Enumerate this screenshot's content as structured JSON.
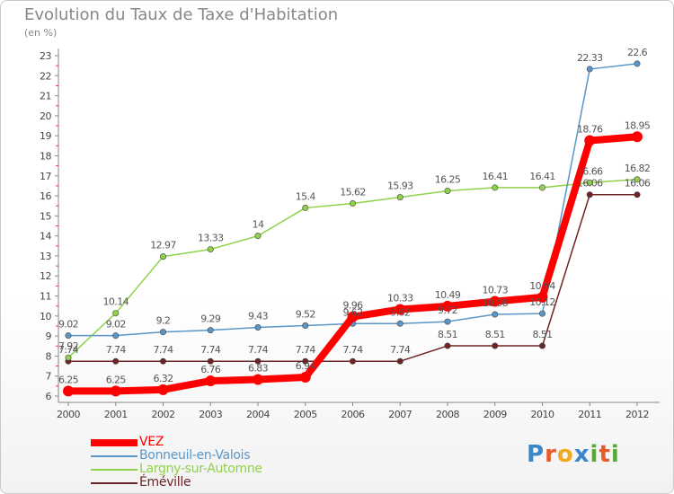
{
  "title": "Evolution du Taux de Taxe d'Habitation",
  "unit_label": "(en %)",
  "logo": {
    "text": "Proxiti",
    "letters": [
      {
        "ch": "P",
        "color": "#3a86c8"
      },
      {
        "ch": "r",
        "color": "#e85a2a"
      },
      {
        "ch": "o",
        "color": "#f2a81d"
      },
      {
        "ch": "x",
        "color": "#3a86c8"
      },
      {
        "ch": "i",
        "color": "#5aa83a"
      },
      {
        "ch": "t",
        "color": "#e85a2a"
      },
      {
        "ch": "i",
        "color": "#5aa83a"
      }
    ]
  },
  "chart_data": {
    "type": "line",
    "title": "Evolution du Taux de Taxe d'Habitation",
    "ylabel": "(en %)",
    "xlabel": "",
    "x": [
      "2000",
      "2001",
      "2002",
      "2003",
      "2004",
      "2005",
      "2006",
      "2007",
      "2008",
      "2009",
      "2010",
      "2011",
      "2012"
    ],
    "ylim": [
      6,
      23
    ],
    "yticks": [
      "6",
      "7",
      "8",
      "9",
      "10",
      "11",
      "12",
      "13",
      "14",
      "15",
      "16",
      "17",
      "18",
      "19",
      "20",
      "21",
      "22",
      "23"
    ],
    "grid": false,
    "legend_position": "bottom-left",
    "series": [
      {
        "name": "VEZ",
        "color": "#ff0000",
        "values": [
          6.25,
          6.25,
          6.32,
          6.76,
          6.83,
          6.94,
          9.96,
          10.33,
          10.49,
          10.73,
          10.94,
          18.76,
          18.95
        ],
        "labels": [
          "6.25",
          "6.25",
          "6.32",
          "6.76",
          "6.83",
          "6.94",
          "9.96",
          "10.33",
          "10.49",
          "10.73",
          "10.94",
          "18.76",
          "18.95"
        ]
      },
      {
        "name": "Bonneuil-en-Valois",
        "color": "#5a96c8",
        "values": [
          9.02,
          9.02,
          9.2,
          9.29,
          9.43,
          9.52,
          9.62,
          9.62,
          9.72,
          10.08,
          10.12,
          22.33,
          22.6
        ],
        "labels": [
          "9.02",
          "9.02",
          "9.2",
          "9.29",
          "9.43",
          "9.52",
          "9.62",
          "9.62",
          "9.72",
          "10.08",
          "10.12",
          "22.33",
          "22.6"
        ]
      },
      {
        "name": "Largny-sur-Automne",
        "color": "#8fd24a",
        "values": [
          7.92,
          10.14,
          12.97,
          13.33,
          14,
          15.4,
          15.62,
          15.93,
          16.25,
          16.41,
          16.41,
          16.66,
          16.82
        ],
        "labels": [
          "7.92",
          "10.14",
          "12.97",
          "13.33",
          "14",
          "15.4",
          "15.62",
          "15.93",
          "16.25",
          "16.41",
          "16.41",
          "16.66",
          "16.82"
        ]
      },
      {
        "name": "Éméville",
        "color": "#6e2424",
        "values": [
          7.74,
          7.74,
          7.74,
          7.74,
          7.74,
          7.74,
          7.74,
          7.74,
          8.51,
          8.51,
          8.51,
          16.06,
          16.06
        ],
        "labels": [
          "7.74",
          "7.74",
          "7.74",
          "7.74",
          "7.74",
          "7.74",
          "7.74",
          "7.74",
          "8.51",
          "8.51",
          "8.51",
          "16.06",
          "16.06"
        ]
      }
    ]
  }
}
